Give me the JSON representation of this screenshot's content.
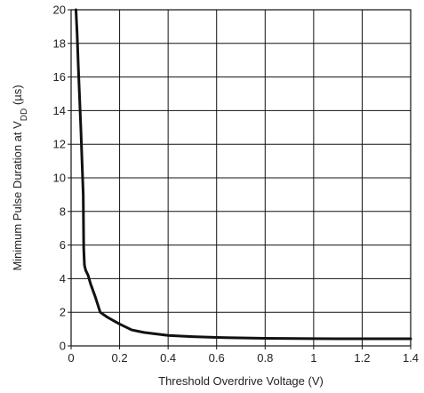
{
  "chart_data": {
    "type": "line",
    "xlabel": "Threshold Overdrive Voltage (V)",
    "ylabel_parts": {
      "prefix": "Minimum Pulse Duration at V",
      "subscript": "DD",
      "suffix": " (µs)"
    },
    "xlim": [
      0,
      1.4
    ],
    "ylim": [
      0,
      20
    ],
    "x_ticks": [
      0,
      0.2,
      0.4,
      0.6,
      0.8,
      1,
      1.2,
      1.4
    ],
    "x_tick_labels": [
      "0",
      "0.2",
      "0.4",
      "0.6",
      "0.8",
      "1",
      "1.2",
      "1.4"
    ],
    "y_ticks": [
      0,
      2,
      4,
      6,
      8,
      10,
      12,
      14,
      16,
      18,
      20
    ],
    "y_tick_labels": [
      "0",
      "2",
      "4",
      "6",
      "8",
      "10",
      "12",
      "14",
      "16",
      "18",
      "20"
    ],
    "grid": true,
    "series": [
      {
        "color": "#111111",
        "x": [
          0.02,
          0.025,
          0.03,
          0.04,
          0.05,
          0.052,
          0.055,
          0.06,
          0.07,
          0.08,
          0.1,
          0.12,
          0.15,
          0.2,
          0.25,
          0.3,
          0.4,
          0.5,
          0.6,
          0.8,
          1.0,
          1.2,
          1.4
        ],
        "y": [
          20,
          18.5,
          16.5,
          13,
          9,
          5.8,
          4.8,
          4.5,
          4.2,
          3.7,
          2.9,
          2.0,
          1.7,
          1.3,
          0.95,
          0.8,
          0.62,
          0.55,
          0.5,
          0.45,
          0.43,
          0.42,
          0.42
        ]
      }
    ]
  }
}
